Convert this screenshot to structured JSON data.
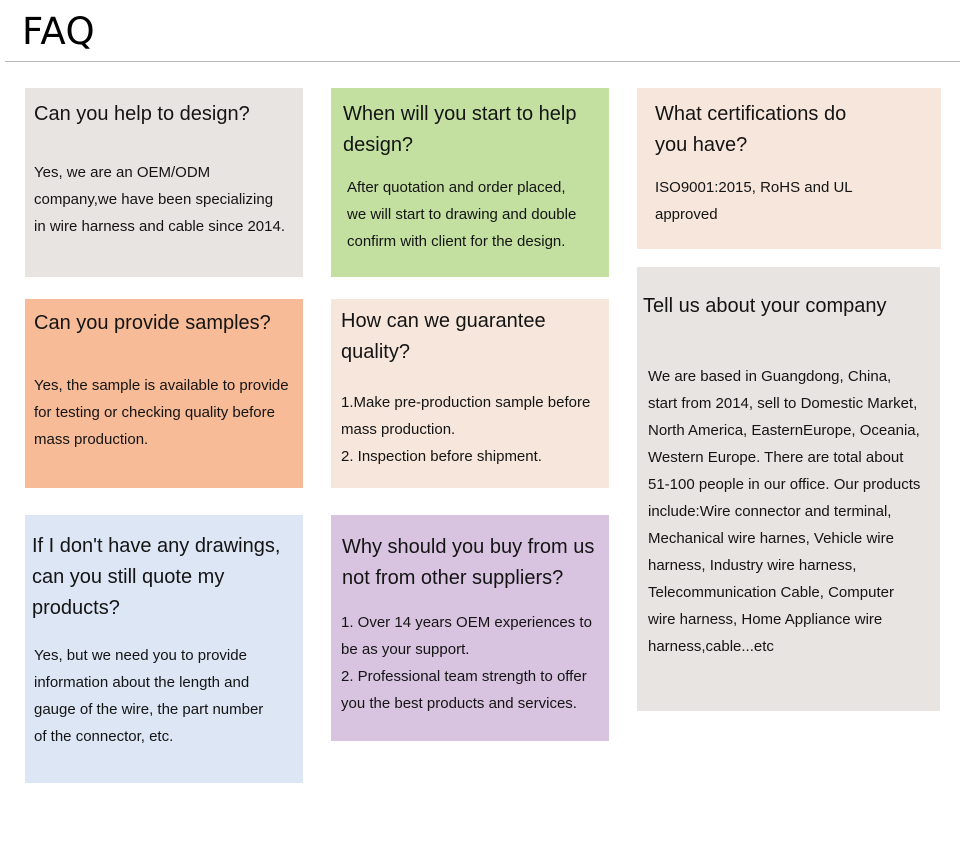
{
  "header": {
    "title": "FAQ"
  },
  "cards": [
    {
      "title": [
        "Can you help to design?"
      ],
      "body": [
        "Yes, we are an OEM/ODM",
        "company,we have been specializing",
        "in wire harness and cable since 2014."
      ],
      "color": "#e8e4e1"
    },
    {
      "title": [
        "When will you start to help",
        "design?"
      ],
      "body": [
        "After quotation and order placed,",
        "we will start to drawing and double",
        "confirm with client for the design."
      ],
      "color": "#c3e0a0"
    },
    {
      "title": [
        "What certifications do",
        "you have?"
      ],
      "body": [
        "ISO9001:2015, RoHS and UL",
        "approved"
      ],
      "color": "#f6e6dc"
    },
    {
      "title": [
        "Can you provide samples?"
      ],
      "body": [
        "Yes, the sample is available to provide",
        "for testing or checking quality before",
        "mass production."
      ],
      "color": "#f8bb97"
    },
    {
      "title": [
        "How can we guarantee",
        "quality?"
      ],
      "body": [
        "1.Make pre-production sample before",
        "mass production.",
        "2. Inspection before shipment."
      ],
      "color": "#f6e6dc"
    },
    {
      "title": [
        "Tell us about your company"
      ],
      "body": [
        "We are based in Guangdong, China,",
        "start from 2014, sell to Domestic Market,",
        "North America, EasternEurope, Oceania,",
        "Western Europe. There are total about",
        "51-100 people in our office. Our products",
        "include:Wire connector and terminal,",
        "Mechanical wire harnes, Vehicle wire",
        "harness, Industry wire harness,",
        "Telecommunication Cable, Computer",
        "wire harness, Home Appliance wire",
        "harness,cable...etc"
      ],
      "color": "#e8e4e1"
    },
    {
      "title": [
        "If I don't have any drawings,",
        "can you still quote my",
        "products?"
      ],
      "body": [
        "Yes, but we need you to provide",
        "information about the length and",
        "gauge of the wire, the part number",
        "of the connector, etc."
      ],
      "color": "#dce6f4"
    },
    {
      "title": [
        "Why should you buy from us",
        "not from other suppliers?"
      ],
      "body": [
        "1. Over 14 years OEM experiences to",
        "be as your support.",
        "2. Professional team strength to offer",
        "you the best products and services."
      ],
      "color": "#d8c4e0"
    }
  ]
}
